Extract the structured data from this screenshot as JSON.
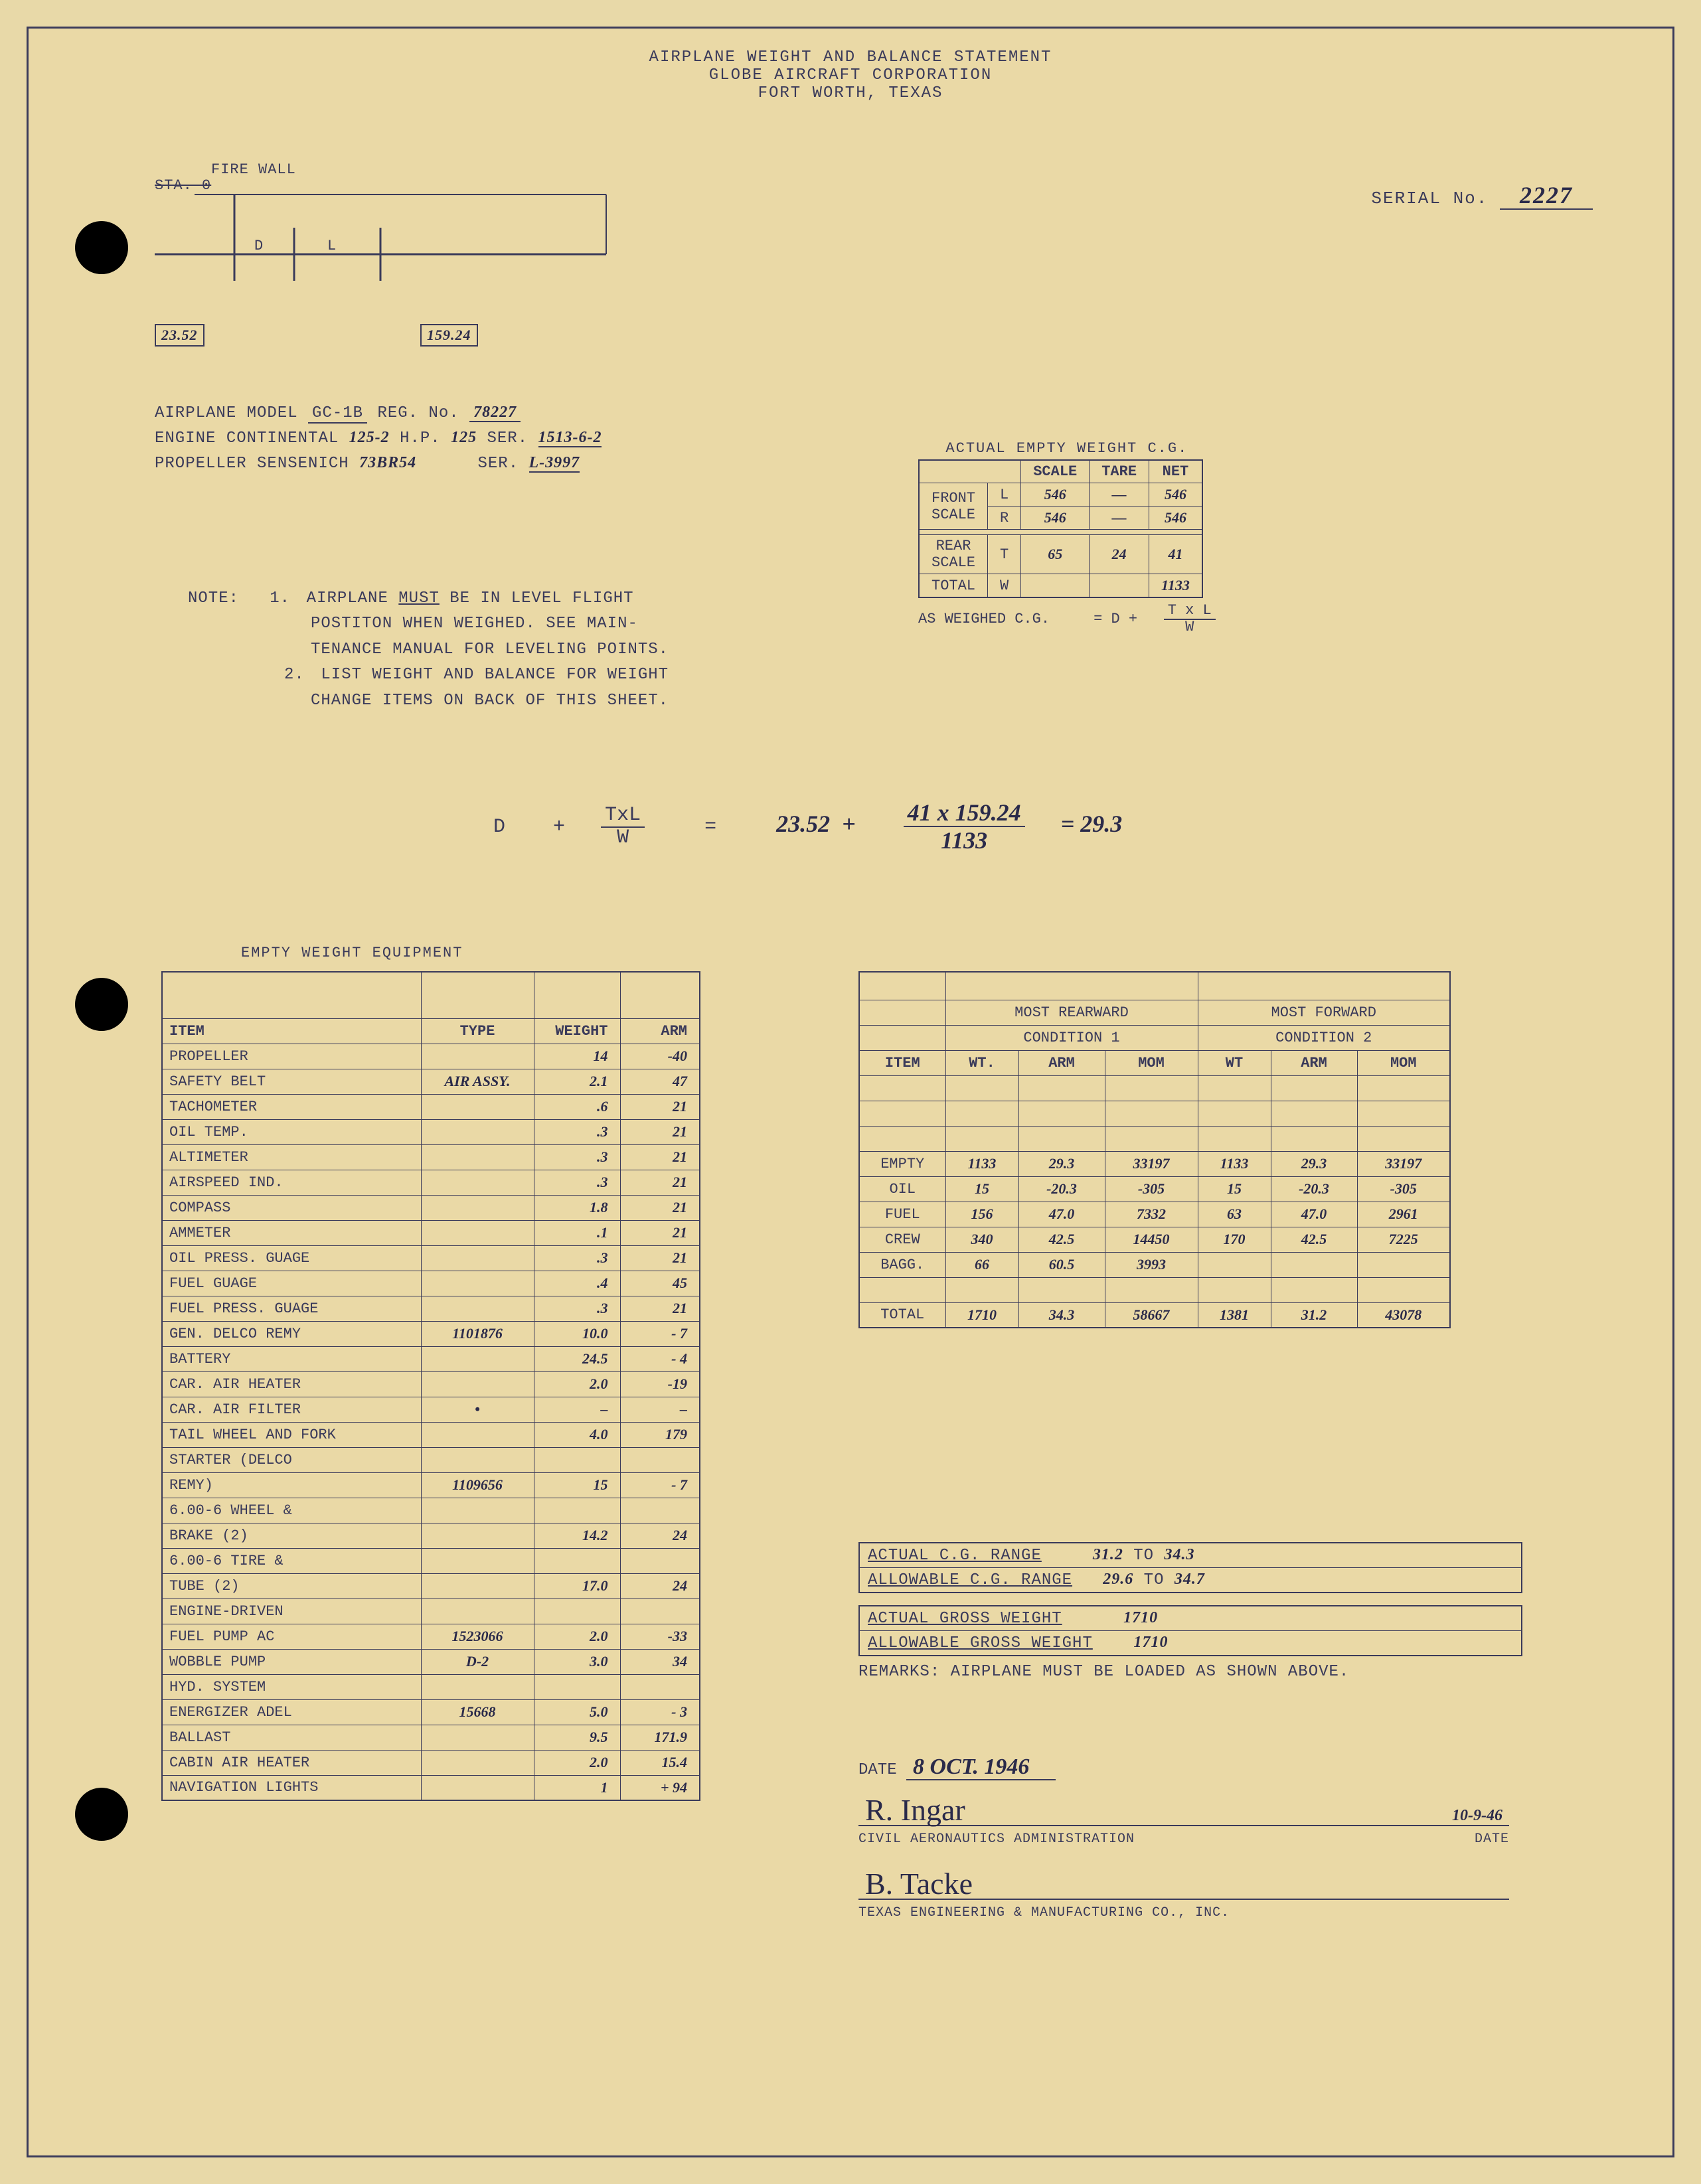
{
  "header": {
    "line1": "AIRPLANE WEIGHT AND BALANCE STATEMENT",
    "line2": "GLOBE AIRCRAFT CORPORATION",
    "line3": "FORT WORTH, TEXAS"
  },
  "serial": {
    "label": "SERIAL No.",
    "value": "2227"
  },
  "diagram": {
    "firewall": "FIRE WALL",
    "sta": "STA. 0",
    "d": "D",
    "l": "L",
    "d_val": "23.52",
    "l_val": "159.24"
  },
  "model": {
    "line1_lbl": "AIRPLANE MODEL",
    "line1_model": "GC-1B",
    "line1_reg_lbl": "REG. No.",
    "line1_reg": "78227",
    "line2_lbl": "ENGINE CONTINENTAL",
    "line2_eng": "125-2",
    "line2_hp": "H.P.",
    "line2_hp_v": "125",
    "line2_ser": "SER.",
    "line2_ser_v": "1513-6-2",
    "line3_lbl": "PROPELLER SENSENICH",
    "line3_prop": "73BR54",
    "line3_ser": "SER.",
    "line3_ser_v": "L-3997"
  },
  "note": {
    "title": "NOTE:",
    "n1a": "AIRPLANE",
    "n1b": "MUST",
    "n1c": "BE IN LEVEL FLIGHT",
    "n1d": "POSTITON WHEN WEIGHED.  SEE MAIN-",
    "n1e": "TENANCE MANUAL FOR LEVELING POINTS.",
    "n2a": "LIST WEIGHT AND BALANCE FOR WEIGHT",
    "n2b": "CHANGE ITEMS ON BACK OF THIS SHEET."
  },
  "cg": {
    "title": "ACTUAL EMPTY WEIGHT C.G.",
    "hdr_scale": "SCALE",
    "hdr_tare": "TARE",
    "hdr_net": "NET",
    "front": "FRONT",
    "scale": "SCALE",
    "rear": "REAR",
    "total": "TOTAL",
    "rows": {
      "L": {
        "scale": "546",
        "tare": "—",
        "net": "546"
      },
      "R": {
        "scale": "546",
        "tare": "—",
        "net": "546"
      },
      "T": {
        "scale": "65",
        "tare": "24",
        "net": "41"
      },
      "W": {
        "scale": "",
        "tare": "",
        "net": "1133"
      }
    },
    "formula_lbl": "AS WEIGHED C.G.",
    "formula_eq": "= D +",
    "formula_num": "T x L",
    "formula_den": "W"
  },
  "main_formula": {
    "left1": "D",
    "left2": "+",
    "frac_num": "TxL",
    "frac_den": "W",
    "eq": "=",
    "d_val": "23.52",
    "plus": "+",
    "num2": "41 x 159.24",
    "den2": "1133",
    "eq2": "= 29.3"
  },
  "equipment": {
    "title": "EMPTY WEIGHT EQUIPMENT",
    "headers": {
      "item": "ITEM",
      "type": "TYPE",
      "weight": "WEIGHT",
      "arm": "ARM"
    },
    "rows": [
      {
        "item": "PROPELLER",
        "type": "",
        "wt": "14",
        "arm": "-40"
      },
      {
        "item": "SAFETY BELT",
        "type": "AIR ASSY.",
        "wt": "2.1",
        "arm": "47"
      },
      {
        "item": "TACHOMETER",
        "type": "",
        "wt": ".6",
        "arm": "21"
      },
      {
        "item": "OIL TEMP.",
        "type": "",
        "wt": ".3",
        "arm": "21"
      },
      {
        "item": "ALTIMETER",
        "type": "",
        "wt": ".3",
        "arm": "21"
      },
      {
        "item": "AIRSPEED IND.",
        "type": "",
        "wt": ".3",
        "arm": "21"
      },
      {
        "item": "COMPASS",
        "type": "",
        "wt": "1.8",
        "arm": "21"
      },
      {
        "item": "AMMETER",
        "type": "",
        "wt": ".1",
        "arm": "21"
      },
      {
        "item": "OIL PRESS. GUAGE",
        "type": "",
        "wt": ".3",
        "arm": "21"
      },
      {
        "item": "FUEL GUAGE",
        "type": "",
        "wt": ".4",
        "arm": "45"
      },
      {
        "item": "FUEL PRESS. GUAGE",
        "type": "",
        "wt": ".3",
        "arm": "21"
      },
      {
        "item": "GEN. DELCO REMY",
        "type": "1101876",
        "wt": "10.0",
        "arm": "- 7"
      },
      {
        "item": "BATTERY",
        "type": "",
        "wt": "24.5",
        "arm": "- 4"
      },
      {
        "item": "CAR. AIR HEATER",
        "type": "",
        "wt": "2.0",
        "arm": "-19"
      },
      {
        "item": "CAR. AIR FILTER",
        "type": "•",
        "wt": "–",
        "arm": "–"
      },
      {
        "item": "TAIL WHEEL AND FORK",
        "type": "",
        "wt": "4.0",
        "arm": "179"
      },
      {
        "item": "STARTER (DELCO",
        "type": "",
        "wt": "",
        "arm": ""
      },
      {
        "item": "REMY)",
        "type": "1109656",
        "wt": "15",
        "arm": "- 7"
      },
      {
        "item": "6.00-6 WHEEL &",
        "type": "",
        "wt": "",
        "arm": ""
      },
      {
        "item": "BRAKE (2)",
        "type": "",
        "wt": "14.2",
        "arm": "24"
      },
      {
        "item": "6.00-6 TIRE &",
        "type": "",
        "wt": "",
        "arm": ""
      },
      {
        "item": "TUBE (2)",
        "type": "",
        "wt": "17.0",
        "arm": "24"
      },
      {
        "item": "ENGINE-DRIVEN",
        "type": "",
        "wt": "",
        "arm": ""
      },
      {
        "item": "FUEL PUMP    AC",
        "type": "1523066",
        "wt": "2.0",
        "arm": "-33"
      },
      {
        "item": "WOBBLE PUMP",
        "type": "D-2",
        "wt": "3.0",
        "arm": "34"
      },
      {
        "item": "HYD. SYSTEM",
        "type": "",
        "wt": "",
        "arm": ""
      },
      {
        "item": "ENERGIZER ADEL",
        "type": "15668",
        "wt": "5.0",
        "arm": "- 3"
      },
      {
        "item": "BALLAST",
        "type": "",
        "wt": "9.5",
        "arm": "171.9"
      },
      {
        "item": "CABIN AIR HEATER",
        "type": "",
        "wt": "2.0",
        "arm": "15.4"
      },
      {
        "item": "NAVIGATION LIGHTS",
        "type": "",
        "wt": "1",
        "arm": "+ 94"
      }
    ]
  },
  "conditions": {
    "hdr_rear": "MOST REARWARD",
    "hdr_fwd": "MOST FORWARD",
    "cond1": "CONDITION 1",
    "cond2": "CONDITION 2",
    "cols": {
      "item": "ITEM",
      "wt": "WT.",
      "arm": "ARM",
      "mom": "MOM",
      "wt2": "WT",
      "arm2": "ARM",
      "mom2": "MOM"
    },
    "blank_rows": 3,
    "rows": [
      {
        "item": "EMPTY",
        "wt1": "1133",
        "arm1": "29.3",
        "mom1": "33197",
        "wt2": "1133",
        "arm2": "29.3",
        "mom2": "33197"
      },
      {
        "item": "OIL",
        "wt1": "15",
        "arm1": "-20.3",
        "mom1": "-305",
        "wt2": "15",
        "arm2": "-20.3",
        "mom2": "-305"
      },
      {
        "item": "FUEL",
        "wt1": "156",
        "arm1": "47.0",
        "mom1": "7332",
        "wt2": "63",
        "arm2": "47.0",
        "mom2": "2961"
      },
      {
        "item": "CREW",
        "wt1": "340",
        "arm1": "42.5",
        "mom1": "14450",
        "wt2": "170",
        "arm2": "42.5",
        "mom2": "7225"
      },
      {
        "item": "BAGG.",
        "wt1": "66",
        "arm1": "60.5",
        "mom1": "3993",
        "wt2": "",
        "arm2": "",
        "mom2": ""
      }
    ],
    "blank_after": 1,
    "total": {
      "item": "TOTAL",
      "wt1": "1710",
      "arm1": "34.3",
      "mom1": "58667",
      "wt2": "1381",
      "arm2": "31.2",
      "mom2": "43078"
    }
  },
  "summary": {
    "actual_cg_lbl": "ACTUAL C.G. RANGE",
    "actual_cg_from": "31.2",
    "to": "TO",
    "actual_cg_to": "34.3",
    "allow_cg_lbl": "ALLOWABLE C.G. RANGE",
    "allow_cg_from": "29.6",
    "allow_cg_to": "34.7",
    "actual_gw_lbl": "ACTUAL GROSS WEIGHT",
    "actual_gw": "1710",
    "allow_gw_lbl": "ALLOWABLE GROSS WEIGHT",
    "allow_gw": "1710",
    "remarks_lbl": "REMARKS:",
    "remarks": "AIRPLANE MUST BE LOADED AS SHOWN ABOVE."
  },
  "signatures": {
    "date_lbl": "DATE",
    "date_val": "8 OCT. 1946",
    "sig1": "R. Ingar",
    "sig1_date": "10-9-46",
    "caa": "CIVIL AERONAUTICS ADMINISTRATION",
    "caa_date": "DATE",
    "sig2": "B. Tacke",
    "tex": "TEXAS ENGINEERING & MANUFACTURING CO., INC."
  },
  "colors": {
    "paper": "#ead9a6",
    "ink": "#3a3a5a",
    "hand": "#2a2a4a",
    "hole": "#000000"
  }
}
